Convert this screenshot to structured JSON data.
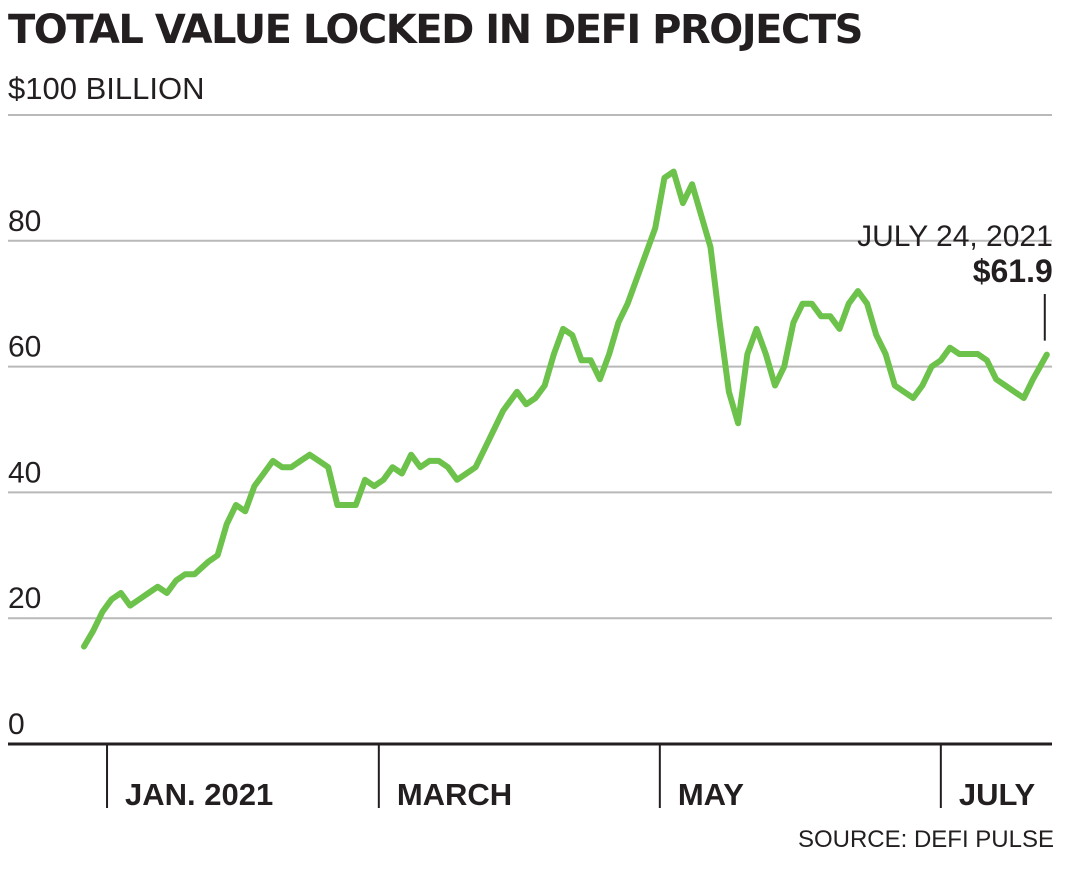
{
  "chart_data": {
    "type": "line",
    "title": "TOTAL VALUE LOCKED IN DEFI PROJECTS",
    "unit_label": "$100 BILLION",
    "source": "SOURCE: DEFI PULSE",
    "y_ticks": [
      "0",
      "20",
      "40",
      "60",
      "80"
    ],
    "ylim": [
      0,
      100
    ],
    "x_ticks": [
      {
        "label": "JAN. 2021",
        "date": "2021-01-01"
      },
      {
        "label": "MARCH",
        "date": "2021-03-01"
      },
      {
        "label": "MAY",
        "date": "2021-05-01"
      },
      {
        "label": "JULY",
        "date": "2021-07-01"
      }
    ],
    "xlim": [
      "2020-12-27",
      "2021-07-26"
    ],
    "grid": true,
    "line_color": "#6cc24a",
    "series": [
      {
        "x": [
          "2020-12-27",
          "2020-12-29",
          "2020-12-31",
          "2021-01-02",
          "2021-01-04",
          "2021-01-06",
          "2021-01-08",
          "2021-01-10",
          "2021-01-12",
          "2021-01-14",
          "2021-01-16",
          "2021-01-18",
          "2021-01-20",
          "2021-01-23",
          "2021-01-25",
          "2021-01-27",
          "2021-01-29",
          "2021-01-31",
          "2021-02-02",
          "2021-02-04",
          "2021-02-06",
          "2021-02-08",
          "2021-02-10",
          "2021-02-12",
          "2021-02-14",
          "2021-02-16",
          "2021-02-18",
          "2021-02-20",
          "2021-02-22",
          "2021-02-24",
          "2021-02-26",
          "2021-02-28",
          "2021-03-02",
          "2021-03-04",
          "2021-03-06",
          "2021-03-08",
          "2021-03-10",
          "2021-03-12",
          "2021-03-14",
          "2021-03-16",
          "2021-03-18",
          "2021-03-20",
          "2021-03-22",
          "2021-03-24",
          "2021-03-26",
          "2021-03-28",
          "2021-03-31",
          "2021-04-02",
          "2021-04-04",
          "2021-04-06",
          "2021-04-08",
          "2021-04-10",
          "2021-04-12",
          "2021-04-14",
          "2021-04-16",
          "2021-04-18",
          "2021-04-20",
          "2021-04-22",
          "2021-04-24",
          "2021-04-26",
          "2021-04-28",
          "2021-04-30",
          "2021-05-02",
          "2021-05-04",
          "2021-05-06",
          "2021-05-08",
          "2021-05-10",
          "2021-05-12",
          "2021-05-14",
          "2021-05-16",
          "2021-05-18",
          "2021-05-20",
          "2021-05-22",
          "2021-05-24",
          "2021-05-26",
          "2021-05-28",
          "2021-05-30",
          "2021-06-01",
          "2021-06-03",
          "2021-06-05",
          "2021-06-07",
          "2021-06-09",
          "2021-06-11",
          "2021-06-13",
          "2021-06-15",
          "2021-06-17",
          "2021-06-19",
          "2021-06-21",
          "2021-06-23",
          "2021-06-25",
          "2021-06-27",
          "2021-06-29",
          "2021-07-01",
          "2021-07-03",
          "2021-07-05",
          "2021-07-07",
          "2021-07-09",
          "2021-07-11",
          "2021-07-13",
          "2021-07-15",
          "2021-07-17",
          "2021-07-19",
          "2021-07-21",
          "2021-07-24"
        ],
        "y": [
          15.5,
          18,
          21,
          23,
          24,
          22,
          23,
          24,
          25,
          24,
          26,
          27,
          27,
          29,
          30,
          35,
          38,
          37,
          41,
          43,
          45,
          44,
          44,
          45,
          46,
          45,
          44,
          38,
          38,
          38,
          42,
          41,
          42,
          44,
          43,
          46,
          44,
          45,
          45,
          44,
          42,
          43,
          44,
          47,
          50,
          53,
          56,
          54,
          55,
          57,
          62,
          66,
          65,
          61,
          61,
          58,
          62,
          67,
          70,
          74,
          78,
          82,
          90,
          91,
          86,
          89,
          84,
          79,
          67,
          56,
          51,
          62,
          66,
          62,
          57,
          60,
          67,
          70,
          70,
          68,
          68,
          66,
          70,
          72,
          70,
          65,
          62,
          57,
          56,
          55,
          57,
          60,
          61,
          63,
          62,
          62,
          62,
          61,
          58,
          57,
          56,
          55,
          58,
          61.9
        ]
      }
    ],
    "annotation": {
      "date": "JULY 24, 2021",
      "value": "$61.9"
    }
  }
}
